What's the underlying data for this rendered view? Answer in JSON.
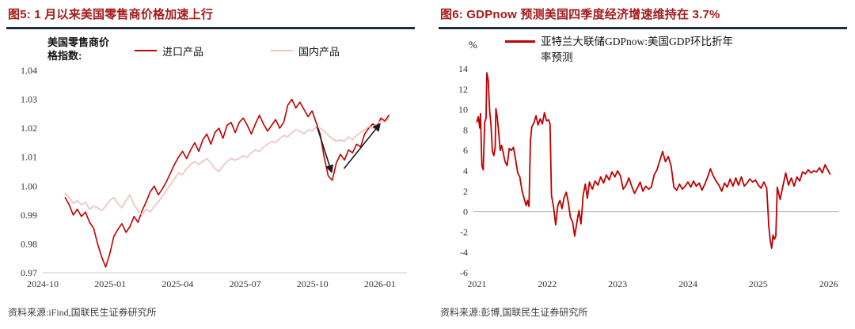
{
  "colors": {
    "title_red": "#A61A1A",
    "rule_navy": "#1F2A44",
    "line_red": "#C00000",
    "line_pink": "#ECC5C2"
  },
  "fig5": {
    "title": "图5: 1 月以来美国零售商价格加速上行",
    "source": "资料来源:iFind,国联民生证券研究所",
    "axis_note": "美国零售商价格指数:"
  },
  "fig6": {
    "title": "图6: GDPnow 预测美国四季度经济增速维持在 3.7%",
    "source": "资料来源:彭博,国联民生证券研究所",
    "ylabel": "%"
  },
  "chart_data": [
    {
      "type": "line",
      "title": "美国零售商价格指数",
      "xlim": [
        0,
        16.2
      ],
      "ylim": [
        0.97,
        1.04
      ],
      "grid": false,
      "bottom_axis": true,
      "legend_position": "top",
      "xticks": {
        "values": [
          0,
          3,
          6,
          9,
          12,
          15
        ],
        "labels": [
          "2024-10",
          "2025-01",
          "2025-04",
          "2025-07",
          "2025-10",
          "2026-01"
        ]
      },
      "yticks": {
        "values": [
          0.97,
          0.98,
          0.99,
          1.0,
          1.01,
          1.02,
          1.03,
          1.04
        ],
        "labels": [
          "0.97",
          "0.98",
          "0.99",
          "1.00",
          "1.01",
          "1.02",
          "1.03",
          "1.04"
        ]
      },
      "series": [
        {
          "name": "进口产品",
          "color": "#C00000",
          "width": 1.6,
          "x_start": 1.0,
          "x_end": 15.4,
          "values": [
            0.996,
            0.9935,
            0.99,
            0.992,
            0.9895,
            0.991,
            0.9875,
            0.9855,
            0.98,
            0.9755,
            0.972,
            0.9765,
            0.9825,
            0.985,
            0.987,
            0.984,
            0.986,
            0.9895,
            0.9875,
            0.9915,
            0.9945,
            0.998,
            1.0,
            0.997,
            0.999,
            1.0015,
            1.0045,
            1.0075,
            1.01,
            1.012,
            1.0095,
            1.0125,
            1.015,
            1.012,
            1.016,
            1.018,
            1.0145,
            1.0185,
            1.02,
            1.0165,
            1.021,
            1.022,
            1.0185,
            1.022,
            1.0235,
            1.021,
            1.018,
            1.0215,
            1.0245,
            1.0215,
            1.019,
            1.021,
            1.023,
            1.02,
            1.022,
            1.028,
            1.03,
            1.027,
            1.029,
            1.0265,
            1.024,
            1.026,
            1.022,
            1.018,
            1.01,
            1.0035,
            1.002,
            1.008,
            1.011,
            1.009,
            1.0125,
            1.0115,
            1.0145,
            1.0135,
            1.018,
            1.02,
            1.0215,
            1.0205,
            1.0235,
            1.0225,
            1.0245
          ]
        },
        {
          "name": "国内产品",
          "color": "#ECC5C2",
          "width": 1.7,
          "x_start": 1.0,
          "x_end": 15.4,
          "values": [
            0.9975,
            0.996,
            0.994,
            0.995,
            0.9935,
            0.9945,
            0.992,
            0.993,
            0.9925,
            0.9915,
            0.993,
            0.995,
            0.996,
            0.994,
            0.9925,
            0.995,
            0.997,
            0.9935,
            0.9915,
            0.99,
            0.992,
            0.991,
            0.993,
            0.9945,
            0.9965,
            0.9985,
            1.0005,
            1.0025,
            1.0045,
            1.004,
            1.006,
            1.0075,
            1.0085,
            1.0075,
            1.0085,
            1.0095,
            1.008,
            1.006,
            1.005,
            1.007,
            1.0085,
            1.0095,
            1.009,
            1.0095,
            1.0105,
            1.01,
            1.0115,
            1.0125,
            1.012,
            1.0135,
            1.0145,
            1.0155,
            1.015,
            1.0165,
            1.0175,
            1.017,
            1.0185,
            1.0195,
            1.019,
            1.018,
            1.0195,
            1.019,
            1.0205,
            1.02,
            1.019,
            1.0175,
            1.0165,
            1.0155,
            1.016,
            1.0155,
            1.017,
            1.016,
            1.0175,
            1.0185,
            1.0195,
            1.0205,
            1.02,
            1.0215,
            1.0225,
            1.022,
            1.0235
          ]
        }
      ],
      "annotations": [
        {
          "type": "arrow",
          "x1": 12.2,
          "y1": 1.0205,
          "x2": 12.85,
          "y2": 1.0048
        },
        {
          "type": "arrow",
          "x1": 13.4,
          "y1": 1.006,
          "x2": 15.0,
          "y2": 1.0215
        }
      ]
    },
    {
      "type": "line",
      "title": "亚特兰大联储GDPnow预测",
      "ylabel": "%",
      "xlim": [
        2020.95,
        2026.15
      ],
      "ylim": [
        -6,
        14
      ],
      "grid": false,
      "zero_line": true,
      "legend_position": "top",
      "xticks": {
        "values": [
          2021,
          2022,
          2023,
          2024,
          2025,
          2026
        ],
        "labels": [
          "2021",
          "2022",
          "2023",
          "2024",
          "2025",
          "2026"
        ]
      },
      "yticks": {
        "values": [
          -6,
          -4,
          -2,
          0,
          2,
          4,
          6,
          8,
          10,
          12,
          14
        ],
        "labels": [
          "-6",
          "-4",
          "-2",
          "0",
          "2",
          "4",
          "6",
          "8",
          "10",
          "12",
          "14"
        ]
      },
      "series": [
        {
          "name": "亚特兰大联储GDPnow:美国GDP环比折年率预测",
          "color": "#C00000",
          "width": 1.8,
          "x": [
            2021.0,
            2021.02,
            2021.04,
            2021.05,
            2021.07,
            2021.09,
            2021.11,
            2021.13,
            2021.14,
            2021.16,
            2021.18,
            2021.2,
            2021.22,
            2021.24,
            2021.26,
            2021.27,
            2021.29,
            2021.31,
            2021.33,
            2021.35,
            2021.37,
            2021.4,
            2021.43,
            2021.46,
            2021.49,
            2021.52,
            2021.55,
            2021.58,
            2021.61,
            2021.64,
            2021.67,
            2021.7,
            2021.72,
            2021.74,
            2021.76,
            2021.78,
            2021.81,
            2021.84,
            2021.87,
            2021.9,
            2021.93,
            2021.96,
            2021.99,
            2022.02,
            2022.04,
            2022.06,
            2022.09,
            2022.12,
            2022.15,
            2022.18,
            2022.21,
            2022.24,
            2022.27,
            2022.3,
            2022.33,
            2022.36,
            2022.39,
            2022.42,
            2022.45,
            2022.48,
            2022.51,
            2022.54,
            2022.57,
            2022.6,
            2022.64,
            2022.68,
            2022.72,
            2022.76,
            2022.8,
            2022.84,
            2022.88,
            2022.92,
            2022.96,
            2023.0,
            2023.04,
            2023.08,
            2023.12,
            2023.16,
            2023.2,
            2023.24,
            2023.28,
            2023.32,
            2023.36,
            2023.4,
            2023.44,
            2023.48,
            2023.52,
            2023.56,
            2023.6,
            2023.64,
            2023.68,
            2023.72,
            2023.76,
            2023.8,
            2023.84,
            2023.88,
            2023.92,
            2023.96,
            2024.0,
            2024.04,
            2024.08,
            2024.12,
            2024.16,
            2024.2,
            2024.24,
            2024.28,
            2024.32,
            2024.36,
            2024.4,
            2024.44,
            2024.48,
            2024.52,
            2024.56,
            2024.6,
            2024.64,
            2024.68,
            2024.72,
            2024.76,
            2024.8,
            2024.84,
            2024.88,
            2024.92,
            2024.96,
            2025.0,
            2025.04,
            2025.08,
            2025.12,
            2025.15,
            2025.17,
            2025.19,
            2025.21,
            2025.23,
            2025.25,
            2025.27,
            2025.31,
            2025.35,
            2025.39,
            2025.43,
            2025.47,
            2025.51,
            2025.55,
            2025.59,
            2025.63,
            2025.67,
            2025.71,
            2025.75,
            2025.79,
            2025.83,
            2025.87,
            2025.91,
            2025.95,
            2025.98,
            2026.02
          ],
          "y": [
            8.8,
            9.3,
            8.2,
            9.6,
            4.5,
            4.1,
            8.7,
            9.2,
            13.6,
            12.9,
            10.0,
            8.5,
            5.9,
            5.5,
            6.3,
            10.1,
            9.2,
            7.7,
            6.0,
            6.5,
            5.9,
            4.9,
            4.5,
            6.2,
            6.0,
            6.3,
            5.1,
            3.8,
            3.4,
            2.1,
            1.3,
            0.6,
            1.1,
            0.5,
            6.9,
            8.3,
            8.7,
            9.4,
            8.5,
            9.1,
            8.6,
            9.7,
            8.9,
            9.0,
            8.6,
            1.6,
            0.4,
            -1.3,
            0.6,
            1.1,
            0.3,
            1.4,
            1.9,
            0.9,
            -0.6,
            -1.0,
            -2.4,
            -1.1,
            0.1,
            -1.2,
            1.6,
            2.7,
            1.3,
            2.9,
            2.2,
            3.0,
            2.6,
            3.4,
            2.8,
            3.6,
            3.1,
            3.9,
            3.4,
            4.0,
            3.5,
            2.2,
            2.6,
            3.3,
            2.5,
            1.8,
            2.3,
            2.9,
            2.0,
            2.5,
            2.2,
            2.4,
            3.6,
            4.1,
            5.0,
            5.9,
            4.9,
            5.4,
            4.5,
            2.4,
            2.1,
            2.7,
            2.2,
            2.5,
            2.9,
            2.4,
            3.0,
            2.5,
            2.8,
            2.1,
            2.7,
            3.4,
            4.2,
            3.5,
            3.0,
            2.6,
            2.0,
            2.8,
            2.4,
            3.2,
            2.5,
            3.3,
            2.6,
            3.4,
            2.5,
            2.8,
            3.2,
            2.9,
            3.1,
            2.6,
            2.3,
            2.9,
            2.3,
            -1.5,
            -2.8,
            -3.6,
            -2.3,
            -2.7,
            -2.4,
            2.4,
            1.2,
            2.5,
            3.8,
            2.6,
            3.3,
            2.5,
            3.4,
            3.0,
            3.9,
            3.7,
            4.1,
            3.8,
            4.0,
            3.9,
            4.3,
            3.8,
            4.6,
            4.2,
            3.7
          ]
        }
      ]
    }
  ]
}
